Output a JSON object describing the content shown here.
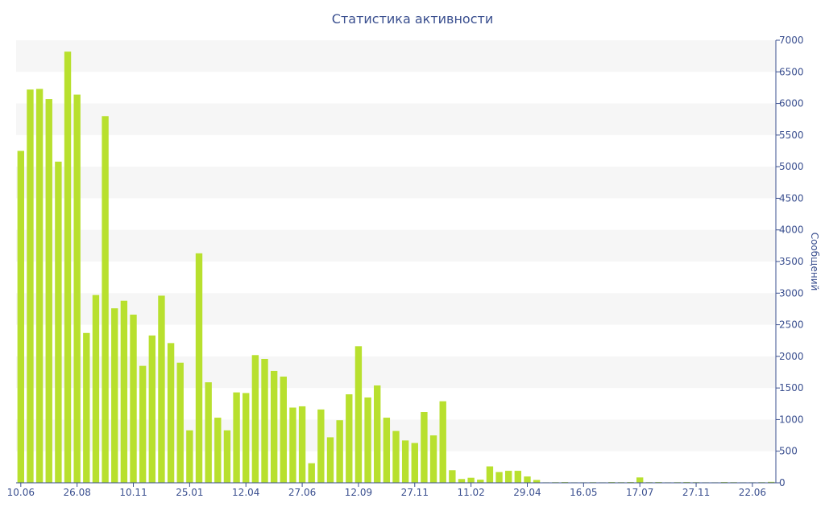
{
  "chart_data": {
    "type": "bar",
    "title": "Статистика активности",
    "xlabel": "",
    "ylabel": "Сообщений",
    "ylim": [
      0,
      7000
    ],
    "yticks": [
      0,
      500,
      1000,
      1500,
      2000,
      2500,
      3000,
      3500,
      4000,
      4500,
      5000,
      5500,
      6000,
      6500,
      7000
    ],
    "y_axis_position": "right",
    "grid": "alternating horizontal bands",
    "bar_color": "#b8e02e",
    "band_color": "#f6f6f6",
    "text_color": "#3a4f8f",
    "x_tick_labels": [
      {
        "label": "10.06",
        "index": 0
      },
      {
        "label": "26.08",
        "index": 6
      },
      {
        "label": "10.11",
        "index": 12
      },
      {
        "label": "25.01",
        "index": 18
      },
      {
        "label": "12.04",
        "index": 24
      },
      {
        "label": "27.06",
        "index": 30
      },
      {
        "label": "12.09",
        "index": 36
      },
      {
        "label": "27.11",
        "index": 42
      },
      {
        "label": "11.02",
        "index": 48
      },
      {
        "label": "29.04",
        "index": 54
      },
      {
        "label": "16.05",
        "index": 60
      },
      {
        "label": "17.07",
        "index": 66
      },
      {
        "label": "27.11",
        "index": 72
      },
      {
        "label": "22.06",
        "index": 78
      }
    ],
    "values": [
      5250,
      6220,
      6230,
      6070,
      5080,
      6820,
      6140,
      2370,
      2970,
      5800,
      2760,
      2880,
      2660,
      1850,
      2330,
      2960,
      2210,
      1900,
      830,
      3630,
      1590,
      1030,
      830,
      1430,
      1420,
      2020,
      1960,
      1770,
      1680,
      1190,
      1210,
      310,
      1160,
      720,
      990,
      1400,
      2160,
      1350,
      1540,
      1030,
      820,
      670,
      630,
      1120,
      750,
      1290,
      200,
      60,
      80,
      50,
      260,
      170,
      190,
      190,
      100,
      45,
      8,
      10,
      12,
      8,
      8,
      10,
      8,
      12,
      10,
      12,
      85,
      10,
      12,
      8,
      10,
      12,
      10,
      8,
      8,
      12,
      10,
      8,
      8,
      10,
      15
    ]
  }
}
